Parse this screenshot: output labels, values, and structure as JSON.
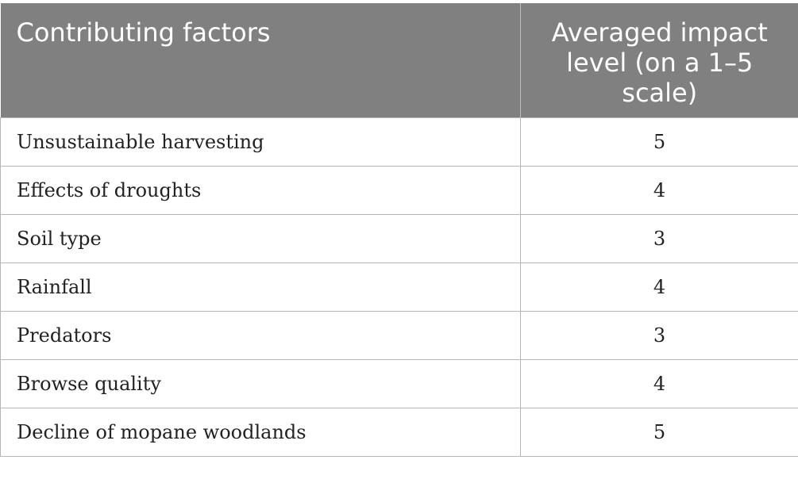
{
  "table": {
    "headers": {
      "factor": "Contributing factors",
      "impact": "Averaged impact level (on a 1–5 scale)"
    },
    "rows": [
      {
        "factor": "Unsustainable harvesting",
        "impact": "5"
      },
      {
        "factor": "Effects of droughts",
        "impact": "4"
      },
      {
        "factor": "Soil type",
        "impact": "3"
      },
      {
        "factor": "Rainfall",
        "impact": "4"
      },
      {
        "factor": "Predators",
        "impact": "3"
      },
      {
        "factor": "Browse quality",
        "impact": "4"
      },
      {
        "factor": "Decline of mopane woodlands",
        "impact": "5"
      }
    ]
  },
  "colors": {
    "header_background": "#808080",
    "header_text": "#ffffff",
    "border": "#b5b5b5"
  }
}
